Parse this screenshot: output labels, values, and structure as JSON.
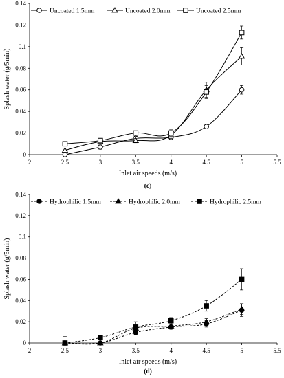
{
  "chart_data": [
    {
      "type": "line",
      "panel_label": "(c)",
      "xlabel": "Inlet air speeds (m/s)",
      "ylabel": "Splash water (g/5min)",
      "xlim": [
        2,
        5.5
      ],
      "ylim": [
        0,
        0.14
      ],
      "x_ticks": [
        "2",
        "2.5",
        "3",
        "3.5",
        "4",
        "4.5",
        "5",
        "5.5"
      ],
      "y_ticks": [
        "0",
        "0.02",
        "0.04",
        "0.06",
        "0.08",
        "0.1",
        "0.12",
        "0.14"
      ],
      "grid": false,
      "legend_position": "top",
      "x": [
        2.5,
        3,
        3.5,
        4,
        4.5,
        5
      ],
      "series": [
        {
          "name": "Uncoated 1.5mm",
          "marker": "circle-open",
          "line": "solid",
          "values": [
            0.0,
            0.007,
            0.015,
            0.016,
            0.026,
            0.06
          ],
          "errors": [
            0.001,
            0.002,
            0.002,
            0.002,
            0.002,
            0.004
          ]
        },
        {
          "name": "Uncoated 2.0mm",
          "marker": "triangle-open",
          "line": "solid",
          "values": [
            0.004,
            0.012,
            0.013,
            0.018,
            0.06,
            0.091
          ],
          "errors": [
            0.002,
            0.002,
            0.002,
            0.003,
            0.007,
            0.008
          ]
        },
        {
          "name": "Uncoated 2.5mm",
          "marker": "square-open",
          "line": "solid",
          "values": [
            0.01,
            0.013,
            0.02,
            0.02,
            0.058,
            0.113
          ],
          "errors": [
            0.001,
            0.002,
            0.002,
            0.003,
            0.006,
            0.006
          ]
        }
      ]
    },
    {
      "type": "line",
      "panel_label": "(d)",
      "xlabel": "Inlet air speeds (m/s)",
      "ylabel": "Splash water (g/5min)",
      "xlim": [
        2,
        5.5
      ],
      "ylim": [
        0,
        0.14
      ],
      "x_ticks": [
        "2",
        "2.5",
        "3",
        "3.5",
        "4",
        "4.5",
        "5",
        "5.5"
      ],
      "y_ticks": [
        "0",
        "0.02",
        "0.04",
        "0.06",
        "0.08",
        "0.1",
        "0.12",
        "0.14"
      ],
      "grid": false,
      "legend_position": "top",
      "x": [
        2.5,
        3,
        3.5,
        4,
        4.5,
        5
      ],
      "series": [
        {
          "name": "Hydrophilic 1.5mm",
          "marker": "circle-filled",
          "line": "dashed",
          "values": [
            0.0,
            0.0,
            0.01,
            0.015,
            0.018,
            0.031
          ],
          "errors": [
            0.0,
            0.0,
            0.002,
            0.002,
            0.003,
            0.006
          ]
        },
        {
          "name": "Hydrophilic 2.0mm",
          "marker": "triangle-filled",
          "line": "dashed",
          "values": [
            0.0,
            0.0,
            0.014,
            0.016,
            0.02,
            0.032
          ],
          "errors": [
            0.0,
            0.0,
            0.002,
            0.002,
            0.003,
            0.005
          ]
        },
        {
          "name": "Hydrophilic 2.5mm",
          "marker": "square-filled",
          "line": "dashed",
          "values": [
            0.0,
            0.005,
            0.015,
            0.021,
            0.035,
            0.06
          ],
          "errors": [
            0.006,
            0.001,
            0.005,
            0.003,
            0.005,
            0.01
          ]
        }
      ]
    }
  ]
}
